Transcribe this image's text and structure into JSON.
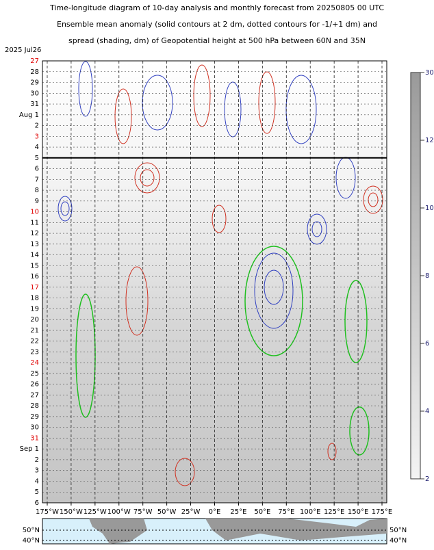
{
  "chart_data": {
    "type": "hovmoller",
    "title_lines": [
      "Time-longitude diagram of 10-day analysis and monthly forecast from 20250805 00 UTC",
      "Ensemble mean anomaly (solid contours at 2 dm, dotted contours for -1/+1 dm) and",
      "spread (shading, dm) of Geopotential height at 500 hPa between 60N and 35N"
    ],
    "start_label": "2025  Jul26",
    "rows": [
      {
        "label": "27",
        "color": "#e00000"
      },
      {
        "label": "28",
        "color": "#000000"
      },
      {
        "label": "29",
        "color": "#000000"
      },
      {
        "label": "30",
        "color": "#000000"
      },
      {
        "label": "31",
        "color": "#000000"
      },
      {
        "label": "Aug  1",
        "color": "#000000"
      },
      {
        "label": "2",
        "color": "#000000"
      },
      {
        "label": "3",
        "color": "#e00000"
      },
      {
        "label": "4",
        "color": "#000000"
      },
      {
        "label": "5",
        "color": "#000000"
      },
      {
        "label": "6",
        "color": "#000000"
      },
      {
        "label": "7",
        "color": "#000000"
      },
      {
        "label": "8",
        "color": "#000000"
      },
      {
        "label": "9",
        "color": "#000000"
      },
      {
        "label": "10",
        "color": "#e00000"
      },
      {
        "label": "11",
        "color": "#000000"
      },
      {
        "label": "12",
        "color": "#000000"
      },
      {
        "label": "13",
        "color": "#000000"
      },
      {
        "label": "14",
        "color": "#000000"
      },
      {
        "label": "15",
        "color": "#000000"
      },
      {
        "label": "16",
        "color": "#000000"
      },
      {
        "label": "17",
        "color": "#e00000"
      },
      {
        "label": "18",
        "color": "#000000"
      },
      {
        "label": "19",
        "color": "#000000"
      },
      {
        "label": "20",
        "color": "#000000"
      },
      {
        "label": "21",
        "color": "#000000"
      },
      {
        "label": "22",
        "color": "#000000"
      },
      {
        "label": "23",
        "color": "#000000"
      },
      {
        "label": "24",
        "color": "#e00000"
      },
      {
        "label": "25",
        "color": "#000000"
      },
      {
        "label": "26",
        "color": "#000000"
      },
      {
        "label": "27",
        "color": "#000000"
      },
      {
        "label": "28",
        "color": "#000000"
      },
      {
        "label": "29",
        "color": "#000000"
      },
      {
        "label": "30",
        "color": "#000000"
      },
      {
        "label": "31",
        "color": "#e00000"
      },
      {
        "label": "Sep  1",
        "color": "#000000"
      },
      {
        "label": "2",
        "color": "#000000"
      },
      {
        "label": "3",
        "color": "#000000"
      },
      {
        "label": "4",
        "color": "#000000"
      },
      {
        "label": "5",
        "color": "#000000"
      },
      {
        "label": "6",
        "color": "#000000"
      }
    ],
    "xlim": [
      -180,
      180
    ],
    "xticks": [
      {
        "value": -175,
        "label": "175°W"
      },
      {
        "value": -150,
        "label": "150°W"
      },
      {
        "value": -125,
        "label": "125°W"
      },
      {
        "value": -100,
        "label": "100°W"
      },
      {
        "value": -75,
        "label": "75°W"
      },
      {
        "value": -50,
        "label": "50°W"
      },
      {
        "value": -25,
        "label": "25°W"
      },
      {
        "value": 0,
        "label": "0°E"
      },
      {
        "value": 25,
        "label": "25°E"
      },
      {
        "value": 50,
        "label": "50°E"
      },
      {
        "value": 75,
        "label": "75°E"
      },
      {
        "value": 100,
        "label": "100°E"
      },
      {
        "value": 125,
        "label": "125°E"
      },
      {
        "value": 150,
        "label": "150°E"
      },
      {
        "value": 175,
        "label": "175°E"
      }
    ],
    "colorbar_levels": [
      2,
      4,
      6,
      8,
      10,
      12,
      30
    ],
    "map_lat_labels": [
      "50°N",
      "40°N"
    ]
  }
}
